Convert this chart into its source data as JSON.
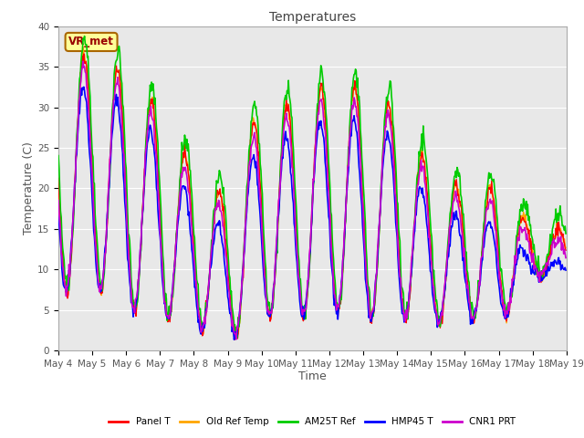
{
  "title": "Temperatures",
  "xlabel": "Time",
  "ylabel": "Temperature (C)",
  "ylim": [
    0,
    40
  ],
  "background_color": "#e8e8e8",
  "fig_background": "#ffffff",
  "legend_labels": [
    "Panel T",
    "Old Ref Temp",
    "AM25T Ref",
    "HMP45 T",
    "CNR1 PRT"
  ],
  "legend_colors": [
    "#ff0000",
    "#ffa500",
    "#00cc00",
    "#0000ff",
    "#cc00cc"
  ],
  "line_widths": [
    1.0,
    1.0,
    1.2,
    1.2,
    1.2
  ],
  "annotation_text": "VR_met",
  "grid_color": "#ffffff",
  "tick_label_color": "#555555",
  "title_fontsize": 10,
  "label_fontsize": 9,
  "tick_fontsize": 7.5,
  "day_mins": [
    7,
    8,
    5,
    4,
    3,
    1,
    4,
    4,
    5,
    4,
    4,
    3,
    4,
    3,
    9,
    9
  ],
  "day_maxs": [
    35,
    37,
    34,
    30,
    22,
    19,
    31,
    30,
    33,
    32,
    30,
    22,
    20,
    20,
    15,
    15
  ]
}
